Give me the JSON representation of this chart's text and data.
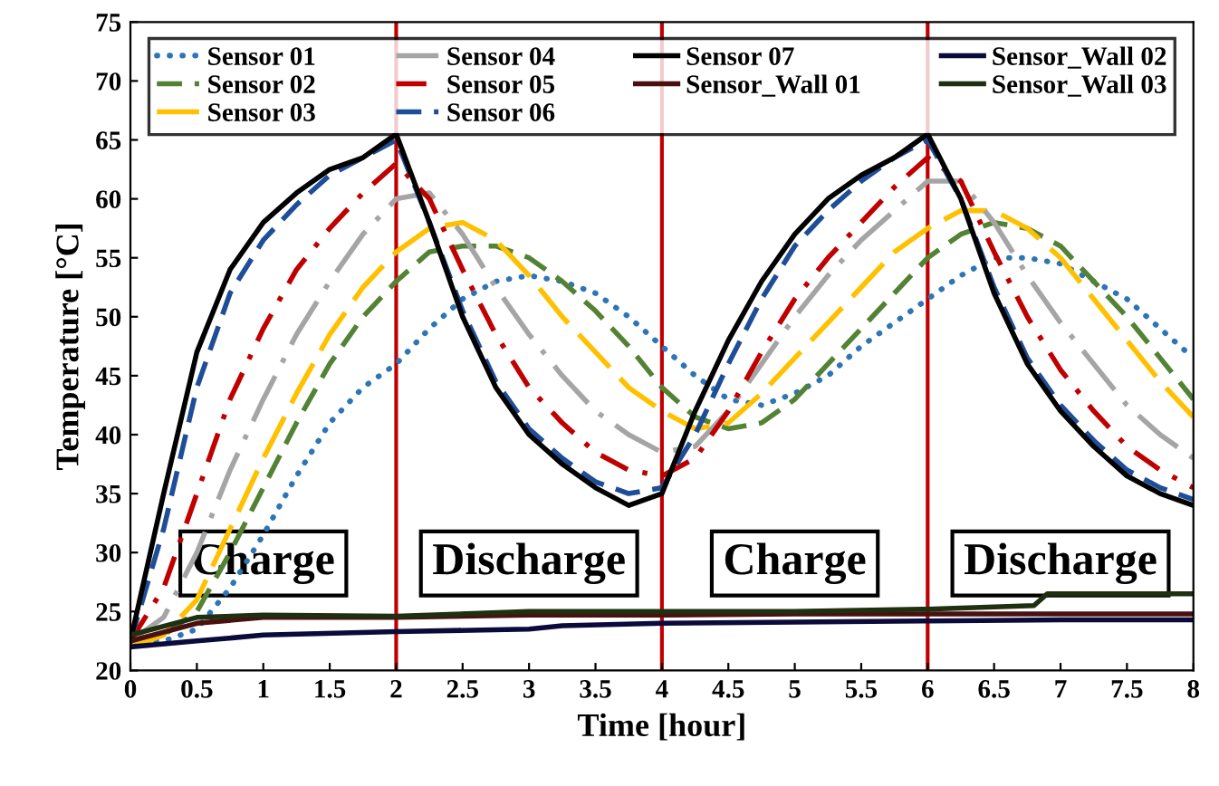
{
  "chart_data": {
    "type": "line",
    "xlabel": "Time [hour]",
    "ylabel": "Temperature [°C]",
    "xlim": [
      0,
      8
    ],
    "xticks": [
      0,
      0.5,
      1,
      1.5,
      2,
      2.5,
      3,
      3.5,
      4,
      4.5,
      5,
      5.5,
      6,
      6.5,
      7,
      7.5,
      8
    ],
    "ylim": [
      20,
      75
    ],
    "yticks": [
      20,
      25,
      30,
      35,
      40,
      45,
      50,
      55,
      60,
      65,
      70,
      75
    ],
    "grid": false,
    "legend": "top",
    "marker": "none",
    "x": [
      0,
      0.25,
      0.5,
      0.75,
      1,
      1.25,
      1.5,
      1.75,
      2,
      2.25,
      2.5,
      2.75,
      3,
      3.25,
      3.5,
      3.75,
      4,
      4.25,
      4.5,
      4.75,
      5,
      5.25,
      5.5,
      5.75,
      6,
      6.25,
      6.5,
      6.75,
      7,
      7.25,
      7.5,
      7.75,
      8
    ],
    "series": [
      {
        "name": "Sensor 01",
        "color": "#2e75b6",
        "line_style": "dotted",
        "values": [
          22.5,
          22.5,
          23.5,
          27,
          31.5,
          36.5,
          41,
          44,
          46,
          49,
          51.5,
          53,
          53.5,
          53,
          52,
          50,
          47.5,
          45,
          43,
          42.5,
          43.5,
          45,
          47.5,
          49.5,
          51.5,
          53.5,
          55,
          55,
          54.5,
          53,
          51.5,
          49,
          46.5
        ]
      },
      {
        "name": "Sensor 02",
        "color": "#548235",
        "line_style": "dashed",
        "values": [
          22.5,
          23,
          25,
          30,
          35.5,
          41,
          46,
          50,
          53,
          55.5,
          56,
          56,
          55,
          53,
          50.5,
          47.5,
          44,
          41.5,
          40.5,
          41,
          43,
          46,
          49,
          52,
          55,
          57,
          58,
          57.5,
          56,
          53,
          50,
          46.5,
          43
        ]
      },
      {
        "name": "Sensor 03",
        "color": "#ffc000",
        "line_style": "longdash",
        "values": [
          22,
          23,
          26,
          32,
          38,
          43.5,
          48.5,
          52.5,
          55.5,
          57.5,
          58,
          56.5,
          53.5,
          50,
          47,
          44,
          42,
          40.5,
          41,
          43.5,
          46.5,
          49.5,
          52.5,
          55.5,
          57.5,
          59,
          59,
          57.5,
          55,
          51.5,
          48,
          44.5,
          41.5
        ]
      },
      {
        "name": "Sensor 04",
        "color": "#a5a5a5",
        "line_style": "longdashdot",
        "values": [
          22.5,
          24.5,
          30,
          37,
          43,
          48.5,
          53,
          57,
          60,
          60.5,
          57,
          52.5,
          48.5,
          45,
          42,
          40,
          38.5,
          39,
          42,
          46,
          50,
          53.5,
          56.5,
          59,
          61.5,
          61.5,
          58,
          53.5,
          49.5,
          46,
          42.5,
          40,
          38
        ]
      },
      {
        "name": "Sensor 05",
        "color": "#c00000",
        "line_style": "dashdot",
        "values": [
          22.5,
          27,
          35,
          43,
          49,
          54,
          57.5,
          60.5,
          63,
          60,
          54,
          48.5,
          44,
          41,
          38.5,
          37,
          36.5,
          38,
          42,
          47,
          51.5,
          55,
          58,
          61,
          63.5,
          61.5,
          55.5,
          50,
          45.5,
          42,
          39,
          37,
          35.5
        ]
      },
      {
        "name": "Sensor 06",
        "color": "#1f4e99",
        "line_style": "dashed",
        "values": [
          22.5,
          32,
          44,
          52,
          56.5,
          59.5,
          62,
          63.5,
          65,
          58,
          50.5,
          44.5,
          40.5,
          38,
          36,
          35,
          35.5,
          40,
          46,
          51.5,
          56,
          59,
          61.5,
          63.5,
          65,
          60,
          52.5,
          46.5,
          42.5,
          39.5,
          37,
          35.5,
          34.5
        ]
      },
      {
        "name": "Sensor 07",
        "color": "#000000",
        "line_style": "solid",
        "values": [
          22.5,
          35,
          47,
          54,
          58,
          60.5,
          62.5,
          63.5,
          65.5,
          58,
          50,
          44,
          40,
          37.5,
          35.5,
          34,
          35,
          42,
          48,
          53,
          57,
          60,
          62,
          63.5,
          65.5,
          60,
          52,
          46,
          42,
          39,
          36.5,
          35,
          34
        ]
      },
      {
        "name": "Sensor_Wall 01",
        "color": "#4a1010",
        "line_style": "solid",
        "x": [
          0,
          0.5,
          1,
          2,
          3,
          4,
          5,
          6,
          7,
          8
        ],
        "values": [
          22.5,
          24,
          24.5,
          24.5,
          24.7,
          24.7,
          24.8,
          24.8,
          24.8,
          24.8
        ]
      },
      {
        "name": "Sensor_Wall 02",
        "color": "#0b0b3b",
        "line_style": "solid",
        "x": [
          0,
          0.5,
          1,
          2,
          3,
          3.25,
          4,
          5,
          6,
          7,
          8
        ],
        "values": [
          22,
          22.5,
          23,
          23.3,
          23.5,
          23.8,
          24,
          24.1,
          24.2,
          24.3,
          24.3
        ]
      },
      {
        "name": "Sensor_Wall 03",
        "color": "#1e3010",
        "line_style": "solid",
        "x": [
          0,
          0.5,
          1,
          2,
          3,
          4,
          5,
          6,
          6.8,
          6.9,
          7,
          8
        ],
        "values": [
          23,
          24.5,
          24.7,
          24.6,
          25,
          25,
          25,
          25.2,
          25.5,
          26.5,
          26.5,
          26.5
        ]
      }
    ],
    "ref_lines": [
      {
        "axis": "x",
        "value": 2,
        "color": "#c00000"
      },
      {
        "axis": "x",
        "value": 4,
        "color": "#c00000"
      },
      {
        "axis": "x",
        "value": 6,
        "color": "#c00000"
      }
    ],
    "annotations": [
      "Charge",
      "Discharge",
      "Charge",
      "Discharge"
    ]
  }
}
